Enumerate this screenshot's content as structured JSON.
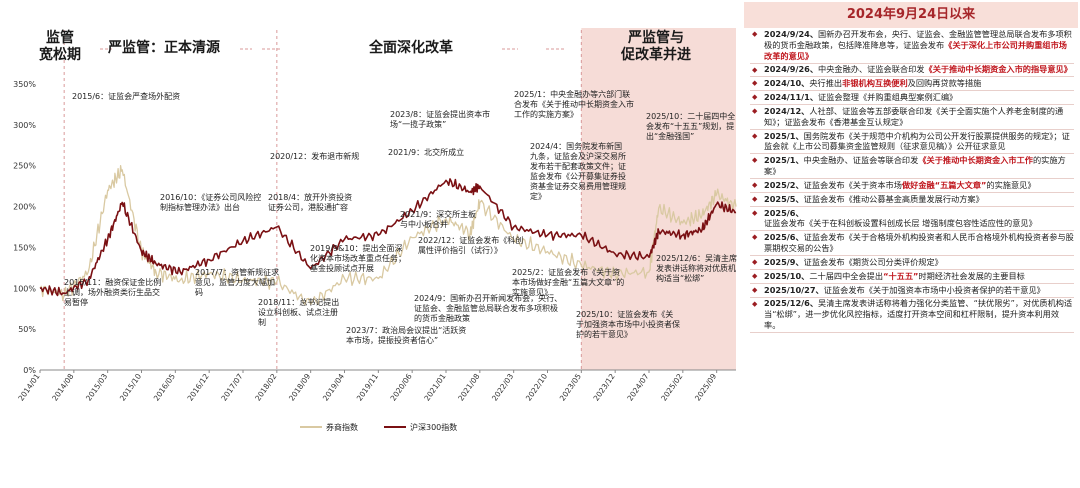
{
  "phases": [
    {
      "label": "监管\n宽松期"
    },
    {
      "label": "严监管：正本清源"
    },
    {
      "label": "全面深化改革"
    },
    {
      "label": "严监管与\n促改革并进"
    }
  ],
  "colors": {
    "brokers": "#d9c9a2",
    "hs300": "#7a1013",
    "phase4_bg": "#f6dcd7",
    "phase_line": "#d99a9a",
    "panel_title_bg": "#f8dfd9",
    "panel_title": "#a6262a",
    "highlight": "#c0161d"
  },
  "chart_data": {
    "type": "line",
    "x": [
      "2014/01",
      "2014/06",
      "2014/11",
      "2015/03",
      "2015/06",
      "2015/10",
      "2016/01",
      "2016/06",
      "2016/12",
      "2017/07",
      "2018/02",
      "2018/09",
      "2019/04",
      "2019/11",
      "2020/06",
      "2021/01",
      "2021/06",
      "2021/08",
      "2022/03",
      "2022/10",
      "2023/05",
      "2023/12",
      "2024/07",
      "2024/09",
      "2025/02",
      "2025/06",
      "2025/09",
      "2026/01"
    ],
    "x_ticks": [
      "2014/01",
      "2014/08",
      "2015/03",
      "2015/10",
      "2016/05",
      "2016/12",
      "2017/07",
      "2018/02",
      "2018/09",
      "2019/04",
      "2019/11",
      "2020/06",
      "2021/01",
      "2021/08",
      "2022/03",
      "2022/10",
      "2023/05",
      "2023/12",
      "2024/07",
      "2025/02",
      "2025/09"
    ],
    "series": [
      {
        "name": "券商指数",
        "values": [
          100,
          92,
          120,
          220,
          245,
          145,
          120,
          110,
          118,
          110,
          108,
          80,
          112,
          112,
          162,
          185,
          168,
          205,
          160,
          145,
          128,
          118,
          120,
          198,
          180,
          190,
          215,
          200
        ]
      },
      {
        "name": "沪深300指数",
        "values": [
          100,
          94,
          110,
          160,
          205,
          145,
          130,
          120,
          135,
          158,
          175,
          124,
          160,
          165,
          195,
          232,
          218,
          225,
          175,
          165,
          165,
          142,
          138,
          170,
          165,
          172,
          203,
          193
        ]
      }
    ],
    "ylim": [
      0,
      350
    ],
    "y_ticks": [
      "0%",
      "50%",
      "100%",
      "150%",
      "200%",
      "250%",
      "300%",
      "350%"
    ],
    "legend": "bottom"
  },
  "annotations": [
    "2015/6：证监会严查场外配资",
    "2015/11：融资保证金比例上调，场外融资类衍生品交易暂停",
    "2016/10：《证券公司风险控制指标管理办法》出台",
    "2017/7：资管新规征求意见，监管力度大幅加码",
    "2018/4：放开外资投资证券公司，港股通扩容",
    "2018/11：总书记提出设立科创板、试点注册制",
    "2019/9&10：提出全面深化资本市场改革重点任务；基金投顾试点开展",
    "2020/12：发布退市新规",
    "2021/9：北交所成立",
    "2021/9：深交所主板与中小板合并",
    "2022/12：证监会发布《科创属性评价指引（试行）》",
    "2023/7：政治局会议提出“活跃资本市场，提振投资者信心”",
    "2023/8：证监会提出资本市场“一揽子政策”",
    "2024/4：国务院发布新国九条，证监会及沪深交易所发布若干配套政策文件；证监会发布《公开募集证券投资基金证券交易费用管理规定》",
    "2024/9：国新办召开新闻发布会，央行、证监会、金融监管总局联合发布多项积极的货币金融政策",
    "2025/1：中央金融办等六部门联合发布《关于推动中长期资金入市工作的实施方案》",
    "2025/2：证监会发布《关于资本市场做好金融“五篇大文章”的实施意见》",
    "2025/10：二十届四中全会发布“十五五”规划，提出“金融强国”",
    "2025/10：证监会发布《关于加强资本市场中小投资者保护的若干意见》",
    "2025/12/6：吴清主席发表讲话称将对优质机构适当“松绑”"
  ],
  "panel": {
    "title": "2024年9月24日以来",
    "events": [
      {
        "date": "2024/9/24、",
        "pre": "国新办召开发布会，央行、证监会、金融监管管理总局联合发布多项积极的货币金融政策，包括降准降息等，证监会发布",
        "hl": "《关于深化上市公司并购重组市场改革的意见》",
        "post": ""
      },
      {
        "date": "2024/9/26、",
        "pre": "中央金融办、证监会联合印发",
        "hl": "《关于推动中长期资金入市的指导意见》",
        "post": ""
      },
      {
        "date": "2024/10、",
        "pre": "央行推出",
        "hl": "非银机构互换便利",
        "post": "及回购再贷款等措施"
      },
      {
        "date": "2024/11/1、",
        "pre": "证监会整理《并购重组典型案例汇编》",
        "hl": "",
        "post": ""
      },
      {
        "date": "2024/12、",
        "pre": "人社部、证监会等五部委联合印发《关于全面实施个人养老金制度的通知》；证监会发布《香港基金互认规定》",
        "hl": "",
        "post": ""
      },
      {
        "date": "2025/1、",
        "pre": "国务院发布《关于规范中介机构为公司公开发行股票提供服务的规定》；证监会就《上市公司募集资金监管规则（征求意见稿）》公开征求意见",
        "hl": "",
        "post": ""
      },
      {
        "date": "2025/1、",
        "pre": "中央金融办、证监会等联合印发",
        "hl": "《关于推动中长期资金入市工作",
        "post": "的实施方案》"
      },
      {
        "date": "2025/2、",
        "pre": "证监会发布《关于资本市场",
        "hl": "做好金融“五篇大文章”",
        "post": "的实施意见》"
      },
      {
        "date": "2025/5、",
        "pre": "证监会发布《推动公募基金高质量发展行动方案》",
        "hl": "",
        "post": ""
      },
      {
        "date": "2025/6、",
        "pre": "证监会发布《关于在科创板设置科创成长层 增强制度包容性适应性的意见》",
        "hl": "",
        "post": ""
      },
      {
        "date": "2025/6、",
        "pre": "证监会发布《关于合格境外机构投资者和人民币合格境外机构投资者参与股票期权交易的公告》",
        "hl": "",
        "post": ""
      },
      {
        "date": "2025/9、",
        "pre": "证监会发布《期货公司分类评价规定》",
        "hl": "",
        "post": ""
      },
      {
        "date": "2025/10、",
        "pre": "二十届四中全会提出",
        "hl": "“十五五”",
        "post": "时期经济社会发展的主要目标"
      },
      {
        "date": "2025/10/27、",
        "pre": "证监会发布《关于加强资本市场中小投资者保护的若干意见》",
        "hl": "",
        "post": ""
      },
      {
        "date": "2025/12/6、",
        "pre": "吴清主席发表讲话称将着力强化分类监管、“扶优限劣”，对优质机构适当“松绑”，进一步优化风控指标，适度打开资本空间和杠杆限制，提升资本利用效率。",
        "hl": "",
        "post": ""
      }
    ]
  }
}
